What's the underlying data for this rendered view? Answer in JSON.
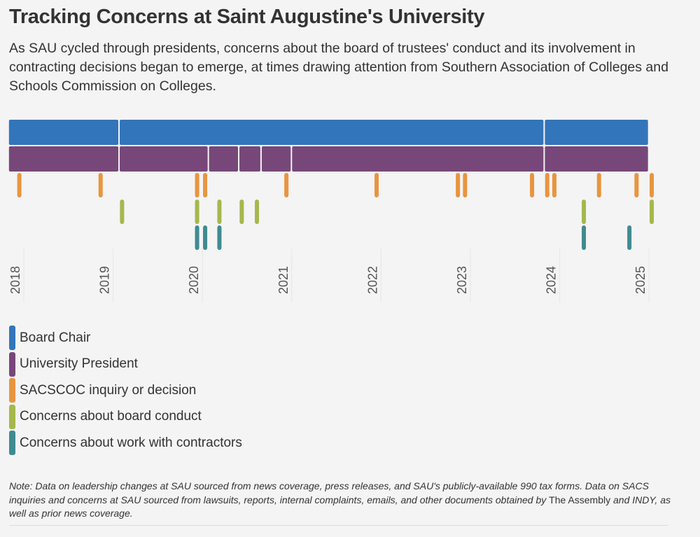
{
  "header": {
    "title": "Tracking Concerns at Saint Augustine's University",
    "subtitle": "As SAU cycled through presidents, concerns about the board of trustees' conduct and its involvement in contracting decisions began to emerge, at times drawing attention from Southern Association of Colleges and Schools Commission on Colleges."
  },
  "chart_data": {
    "type": "timeline",
    "title": "Tracking Concerns at Saint Augustine's University",
    "xlabel": "",
    "ylabel": "",
    "x_range": [
      2017.83,
      2025.1
    ],
    "x_ticks": [
      2018,
      2019,
      2020,
      2021,
      2022,
      2023,
      2024,
      2025
    ],
    "x_tick_labels": [
      "2018",
      "2019",
      "2020",
      "2021",
      "2022",
      "2023",
      "2024",
      "2025"
    ],
    "grid": true,
    "legend_position": "bottom-left",
    "series": [
      {
        "name": "Board Chair",
        "kind": "spans",
        "color": "#3375ba",
        "spans": [
          [
            2017.83,
            2019.07
          ],
          [
            2019.07,
            2023.83
          ],
          [
            2023.83,
            2025.0
          ]
        ]
      },
      {
        "name": "University President",
        "kind": "spans",
        "color": "#77477a",
        "spans": [
          [
            2017.83,
            2019.07
          ],
          [
            2019.07,
            2020.07
          ],
          [
            2020.07,
            2020.41
          ],
          [
            2020.41,
            2020.66
          ],
          [
            2020.66,
            2021.0
          ],
          [
            2021.0,
            2023.83
          ],
          [
            2023.83,
            2025.0
          ]
        ]
      },
      {
        "name": "SACSCOC inquiry or decision",
        "kind": "events",
        "color": "#e8953f",
        "dates": [
          2017.95,
          2018.86,
          2019.94,
          2020.03,
          2020.94,
          2021.95,
          2022.86,
          2022.94,
          2023.69,
          2023.86,
          2023.94,
          2024.44,
          2024.86,
          2025.03
        ]
      },
      {
        "name": "Concerns about board conduct",
        "kind": "events",
        "color": "#a4b84c",
        "dates": [
          2019.1,
          2019.94,
          2020.19,
          2020.44,
          2020.61,
          2024.27,
          2025.03
        ]
      },
      {
        "name": "Concerns about work with contractors",
        "kind": "events",
        "color": "#3f8b91",
        "dates": [
          2019.94,
          2020.03,
          2020.19,
          2024.27,
          2024.78
        ]
      }
    ]
  },
  "legend": {
    "items": [
      {
        "label": "Board Chair",
        "color": "#3375ba"
      },
      {
        "label": "University President",
        "color": "#77477a"
      },
      {
        "label": "SACSCOC inquiry or decision",
        "color": "#e8953f"
      },
      {
        "label": "Concerns about board conduct",
        "color": "#a4b84c"
      },
      {
        "label": "Concerns about work with contractors",
        "color": "#3f8b91"
      }
    ]
  },
  "note": {
    "part1": "Note: Data on leadership changes at SAU sourced from news coverage, press releases, and SAU's publicly-available 990 tax forms. Data on SACS inquiries and concerns at SAU sourced from lawsuits, reports, internal complaints, emails, and other documents obtained by ",
    "outlet": "The Assembly",
    "part2": " and INDY, as well as prior news coverage."
  }
}
